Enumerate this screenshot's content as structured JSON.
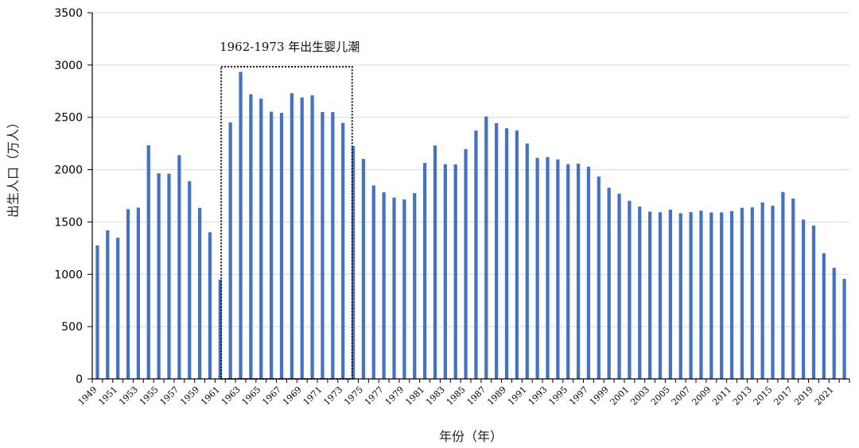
{
  "chart_data": {
    "type": "bar",
    "title": "",
    "xlabel": "年份（年）",
    "ylabel": "出生人口（万人）",
    "ylim": [
      0,
      3500
    ],
    "yticks": [
      0,
      500,
      1000,
      1500,
      2000,
      2500,
      3000,
      3500
    ],
    "grid": true,
    "bar_color": "#4472C4",
    "x_tick_labels_shown": [
      "1949",
      "1951",
      "1953",
      "1955",
      "1957",
      "1959",
      "1961",
      "1963",
      "1965",
      "1967",
      "1969",
      "1971",
      "1973",
      "1975",
      "1977",
      "1979",
      "1981",
      "1983",
      "1985",
      "1987",
      "1989",
      "1991",
      "1993",
      "1995",
      "1997",
      "1999",
      "2001",
      "2003",
      "2005",
      "2007",
      "2009",
      "2011",
      "2013",
      "2015",
      "2017",
      "2019",
      "2021"
    ],
    "categories": [
      "1949",
      "1950",
      "1951",
      "1952",
      "1953",
      "1954",
      "1955",
      "1956",
      "1957",
      "1958",
      "1959",
      "1960",
      "1961",
      "1962",
      "1963",
      "1964",
      "1965",
      "1966",
      "1967",
      "1968",
      "1969",
      "1970",
      "1971",
      "1972",
      "1973",
      "1974",
      "1975",
      "1976",
      "1977",
      "1978",
      "1979",
      "1980",
      "1981",
      "1982",
      "1983",
      "1984",
      "1985",
      "1986",
      "1987",
      "1988",
      "1989",
      "1990",
      "1991",
      "1992",
      "1993",
      "1994",
      "1995",
      "1996",
      "1997",
      "1998",
      "1999",
      "2000",
      "2001",
      "2002",
      "2003",
      "2004",
      "2005",
      "2006",
      "2007",
      "2008",
      "2009",
      "2010",
      "2011",
      "2012",
      "2013",
      "2014",
      "2015",
      "2016",
      "2017",
      "2018",
      "2019",
      "2020",
      "2021",
      "2022"
    ],
    "values": [
      1275,
      1419,
      1349,
      1622,
      1637,
      2232,
      1965,
      1961,
      2138,
      1889,
      1635,
      1402,
      949,
      2451,
      2934,
      2721,
      2679,
      2554,
      2543,
      2731,
      2690,
      2710,
      2551,
      2550,
      2447,
      2226,
      2102,
      1849,
      1783,
      1733,
      1715,
      1776,
      2064,
      2230,
      2052,
      2050,
      2196,
      2374,
      2508,
      2445,
      2396,
      2374,
      2250,
      2113,
      2120,
      2098,
      2052,
      2057,
      2028,
      1934,
      1827,
      1771,
      1702,
      1647,
      1599,
      1593,
      1617,
      1584,
      1594,
      1608,
      1591,
      1592,
      1604,
      1635,
      1640,
      1687,
      1655,
      1786,
      1723,
      1523,
      1465,
      1202,
      1062,
      956
    ],
    "annotation": {
      "text": "1962-1973 年出生婴儿潮",
      "range": [
        "1962",
        "1973"
      ]
    }
  }
}
